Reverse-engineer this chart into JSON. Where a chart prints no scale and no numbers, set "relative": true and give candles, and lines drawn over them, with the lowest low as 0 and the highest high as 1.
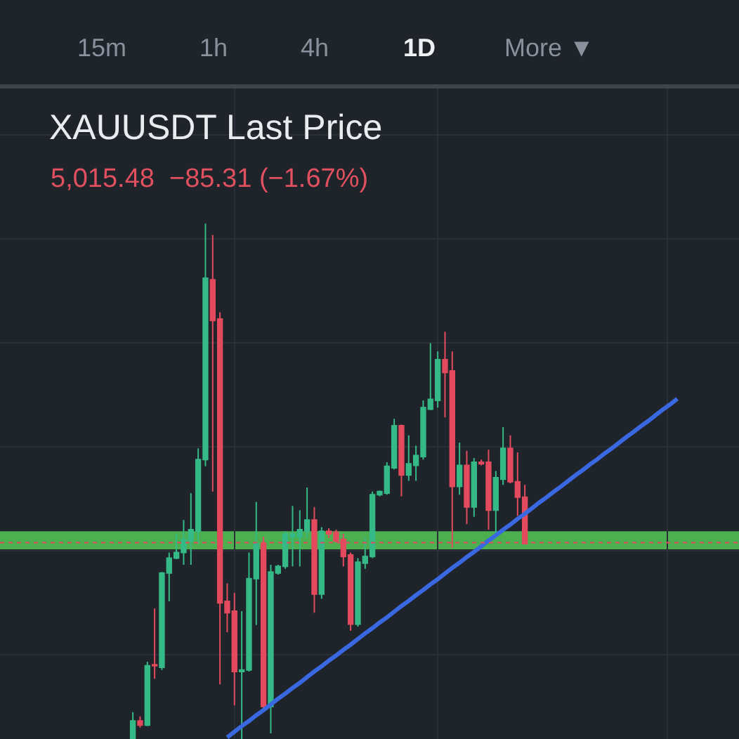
{
  "chart_data": {
    "type": "candlestick",
    "title": "XAUUSDT Last Price",
    "subtitle": "5,015.48  −85.31 (−1.67%)",
    "annotations": [
      "15m",
      "1h",
      "4h",
      "1D",
      "More ▼"
    ],
    "relative": true,
    "grid": true,
    "categories": [
      null,
      null,
      null,
      null,
      null,
      null,
      null,
      null,
      null,
      null,
      null,
      null,
      null,
      null,
      null,
      null,
      null,
      null,
      null,
      null,
      null,
      null,
      null,
      null,
      null,
      null,
      null,
      null,
      null,
      null,
      null,
      null,
      null,
      null,
      null,
      null,
      null,
      null,
      null,
      null,
      null,
      null,
      null,
      null,
      null,
      null,
      null,
      null,
      null,
      null,
      null,
      null,
      null,
      null,
      null,
      null,
      null,
      null,
      null,
      null,
      null,
      null,
      null,
      null,
      null,
      null,
      null,
      null,
      null,
      null,
      null,
      null,
      null,
      null,
      null,
      null,
      null
    ],
    "ohlc": [
      [
        0,
        0.052,
        0,
        0.035
      ],
      [
        0.035,
        0.044,
        0.022,
        0.027
      ],
      [
        0.027,
        0.15,
        0.025,
        0.142
      ],
      [
        0.144,
        0.253,
        0.117,
        0.142
      ],
      [
        0.139,
        0.324,
        0.134,
        0.322
      ],
      [
        0.322,
        0.362,
        0.267,
        0.351
      ],
      [
        0.351,
        0.398,
        0.349,
        0.362
      ],
      [
        0.362,
        0.425,
        0.338,
        0.387
      ],
      [
        0.384,
        0.477,
        0.338,
        0.406
      ],
      [
        0.403,
        0.564,
        0.379,
        0.542
      ],
      [
        0.542,
        1.0,
        0.529,
        0.894
      ],
      [
        0.891,
        0.978,
        0.48,
        0.812
      ],
      [
        0.815,
        0.828,
        0.106,
        0.264
      ],
      [
        0.267,
        0.302,
        0.207,
        0.245
      ],
      [
        0.248,
        0.283,
        0.065,
        0.131
      ],
      [
        0.131,
        0.248,
        0,
        0.134
      ],
      [
        0.134,
        0.362,
        0.131,
        0.311
      ],
      [
        0.311,
        0.46,
        0.221,
        0.379
      ],
      [
        0.379,
        0.392,
        0.06,
        0.063
      ],
      [
        0.063,
        0.338,
        0.011,
        0.324
      ],
      [
        0.322,
        0.338,
        0.319,
        0.335
      ],
      [
        0.335,
        0.403,
        0.33,
        0.398
      ],
      [
        0.392,
        0.452,
        0.335,
        0.398
      ],
      [
        0.392,
        0.444,
        0.335,
        0.406
      ],
      [
        0.403,
        0.488,
        0.39,
        0.425
      ],
      [
        0.425,
        0.45,
        0.245,
        0.281
      ],
      [
        0.281,
        0.411,
        0.272,
        0.403
      ],
      [
        0.403,
        0.409,
        0.39,
        0.398
      ],
      [
        0.401,
        0.406,
        0.381,
        0.384
      ],
      [
        0.387,
        0.398,
        0.335,
        0.354
      ],
      [
        0.357,
        0.362,
        0.21,
        0.223
      ],
      [
        0.223,
        0.351,
        0.218,
        0.343
      ],
      [
        0.341,
        0.39,
        0.33,
        0.354
      ],
      [
        0.354,
        0.48,
        0.351,
        0.474
      ],
      [
        0.474,
        0.482,
        0.471,
        0.48
      ],
      [
        0.477,
        0.537,
        0.474,
        0.529
      ],
      [
        0.526,
        0.621,
        0.523,
        0.608
      ],
      [
        0.608,
        0.61,
        0.471,
        0.512
      ],
      [
        0.512,
        0.589,
        0.501,
        0.534
      ],
      [
        0.531,
        0.569,
        0.501,
        0.55
      ],
      [
        0.548,
        0.657,
        0.542,
        0.643
      ],
      [
        0.64,
        0.768,
        0.638,
        0.659
      ],
      [
        0.657,
        0.752,
        0.643,
        0.736
      ],
      [
        0.736,
        0.79,
        0.624,
        0.711
      ],
      [
        0.714,
        0.752,
        0.371,
        0.49
      ],
      [
        0.49,
        0.575,
        0.474,
        0.531
      ],
      [
        0.531,
        0.559,
        0.417,
        0.45
      ],
      [
        0.45,
        0.545,
        0.431,
        0.537
      ],
      [
        0.537,
        0.542,
        0.531,
        0.534
      ],
      [
        0.537,
        0.561,
        0.406,
        0.444
      ],
      [
        0.444,
        0.52,
        0.398,
        0.507
      ],
      [
        0.504,
        0.605,
        0.493,
        0.564
      ],
      [
        0.564,
        0.589,
        0.496,
        0.499
      ],
      [
        0.499,
        0.556,
        0.433,
        0.469
      ],
      [
        0.469,
        0.493,
        0.379,
        0.379
      ],
      null,
      null,
      null,
      null,
      null,
      null,
      null,
      null,
      null,
      null,
      null,
      null,
      null,
      null,
      null,
      null,
      null,
      null,
      null,
      null,
      null,
      null
    ],
    "colors": [
      "#35b987",
      "#e34a5e",
      "#35b987",
      "#e34a5e",
      "#35b987",
      "#35b987",
      "#35b987",
      "#35b987",
      "#35b987",
      "#35b987",
      "#35b987",
      "#e34a5e",
      "#e34a5e",
      "#e34a5e",
      "#e34a5e",
      "#35b987",
      "#35b987",
      "#35b987",
      "#e34a5e",
      "#35b987",
      "#35b987",
      "#35b987",
      "#35b987",
      "#35b987",
      "#35b987",
      "#e34a5e",
      "#35b987",
      "#e34a5e",
      "#e34a5e",
      "#e34a5e",
      "#e34a5e",
      "#35b987",
      "#35b987",
      "#35b987",
      "#35b987",
      "#35b987",
      "#35b987",
      "#e34a5e",
      "#35b987",
      "#35b987",
      "#35b987",
      "#35b987",
      "#35b987",
      "#e34a5e",
      "#e34a5e",
      "#35b987",
      "#e34a5e",
      "#35b987",
      "#e34a5e",
      "#e34a5e",
      "#35b987",
      "#35b987",
      "#e34a5e",
      "#e34a5e",
      "#e34a5e",
      null,
      null,
      null,
      null,
      null,
      null,
      null,
      null,
      null,
      null,
      null,
      null,
      null,
      null,
      null,
      null,
      null,
      null,
      null,
      null,
      null,
      null
    ],
    "series": [
      {
        "type": "line",
        "color": "#3a68e0",
        "values": [
          null,
          null,
          null,
          null,
          null,
          null,
          null,
          null,
          null,
          null,
          null,
          null,
          null,
          0.003,
          0.014,
          0.025,
          0.035,
          0.046,
          0.056,
          0.067,
          0.078,
          0.088,
          0.099,
          0.109,
          0.12,
          0.131,
          0.141,
          0.152,
          0.162,
          0.173,
          0.183,
          0.194,
          0.205,
          0.215,
          0.226,
          0.236,
          0.247,
          0.258,
          0.268,
          0.279,
          0.289,
          0.3,
          0.31,
          0.321,
          0.332,
          0.342,
          0.353,
          0.363,
          0.374,
          0.385,
          0.395,
          0.406,
          0.416,
          0.427,
          0.437,
          0.448,
          0.459,
          0.469,
          0.48,
          0.49,
          0.501,
          0.512,
          0.522,
          0.533,
          0.543,
          0.554,
          0.564,
          0.575,
          0.586,
          0.596,
          0.607,
          0.617,
          0.628,
          0.639,
          0.649,
          0.66,
          null
        ]
      }
    ],
    "bands": [
      {
        "axis": "y",
        "from": 0.368,
        "to": 0.403,
        "color": "#4caf50"
      }
    ],
    "ref_lines": [
      {
        "axis": "y",
        "value": 0.381,
        "color": "#e34a5e",
        "line_style": "dotted"
      }
    ]
  }
}
